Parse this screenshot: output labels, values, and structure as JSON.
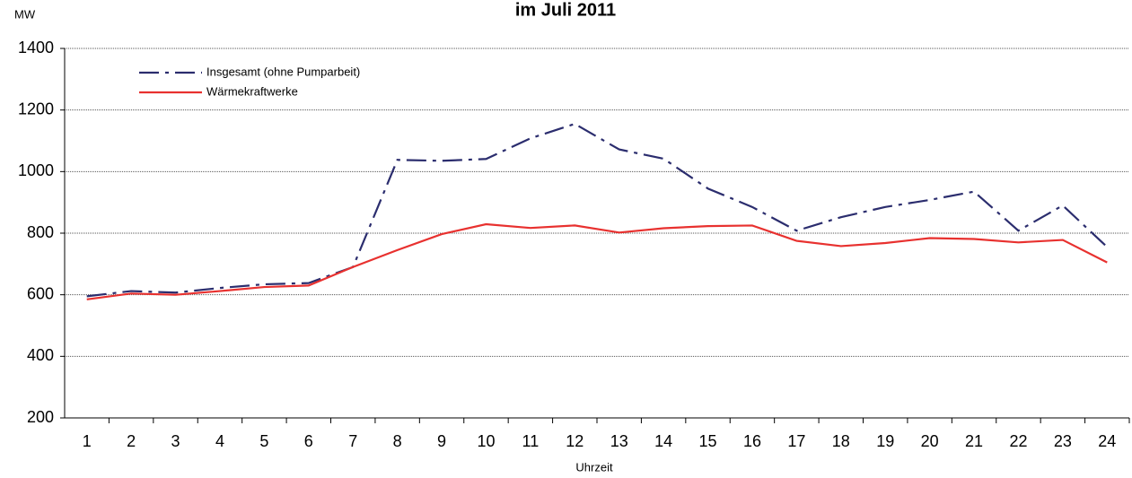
{
  "chart_data": {
    "type": "line",
    "title": "im Juli 2011",
    "y_label": "MW",
    "x_label": "Uhrzeit",
    "categories": [
      "1",
      "2",
      "3",
      "4",
      "5",
      "6",
      "7",
      "8",
      "9",
      "10",
      "11",
      "12",
      "13",
      "14",
      "15",
      "16",
      "17",
      "18",
      "19",
      "20",
      "21",
      "22",
      "23",
      "24"
    ],
    "series": [
      {
        "name": "Insgesamt (ohne Pumparbeit)",
        "color": "#2b2d6e",
        "dash": "dashdot",
        "values": [
          595,
          612,
          607,
          622,
          634,
          638,
          690,
          1038,
          1035,
          1041,
          1108,
          1155,
          1072,
          1042,
          945,
          885,
          808,
          852,
          885,
          908,
          935,
          808,
          890,
          755
        ]
      },
      {
        "name": "Wärmekraftwerke",
        "color": "#e8312f",
        "dash": "solid",
        "values": [
          585,
          604,
          600,
          612,
          625,
          630,
          690,
          745,
          797,
          829,
          817,
          825,
          802,
          816,
          823,
          825,
          775,
          758,
          768,
          784,
          781,
          770,
          778,
          705
        ]
      }
    ],
    "ylim": [
      200,
      1400
    ],
    "yticks": [
      200,
      400,
      600,
      800,
      1000,
      1200,
      1400
    ],
    "grid": true,
    "legend": "top-left"
  }
}
